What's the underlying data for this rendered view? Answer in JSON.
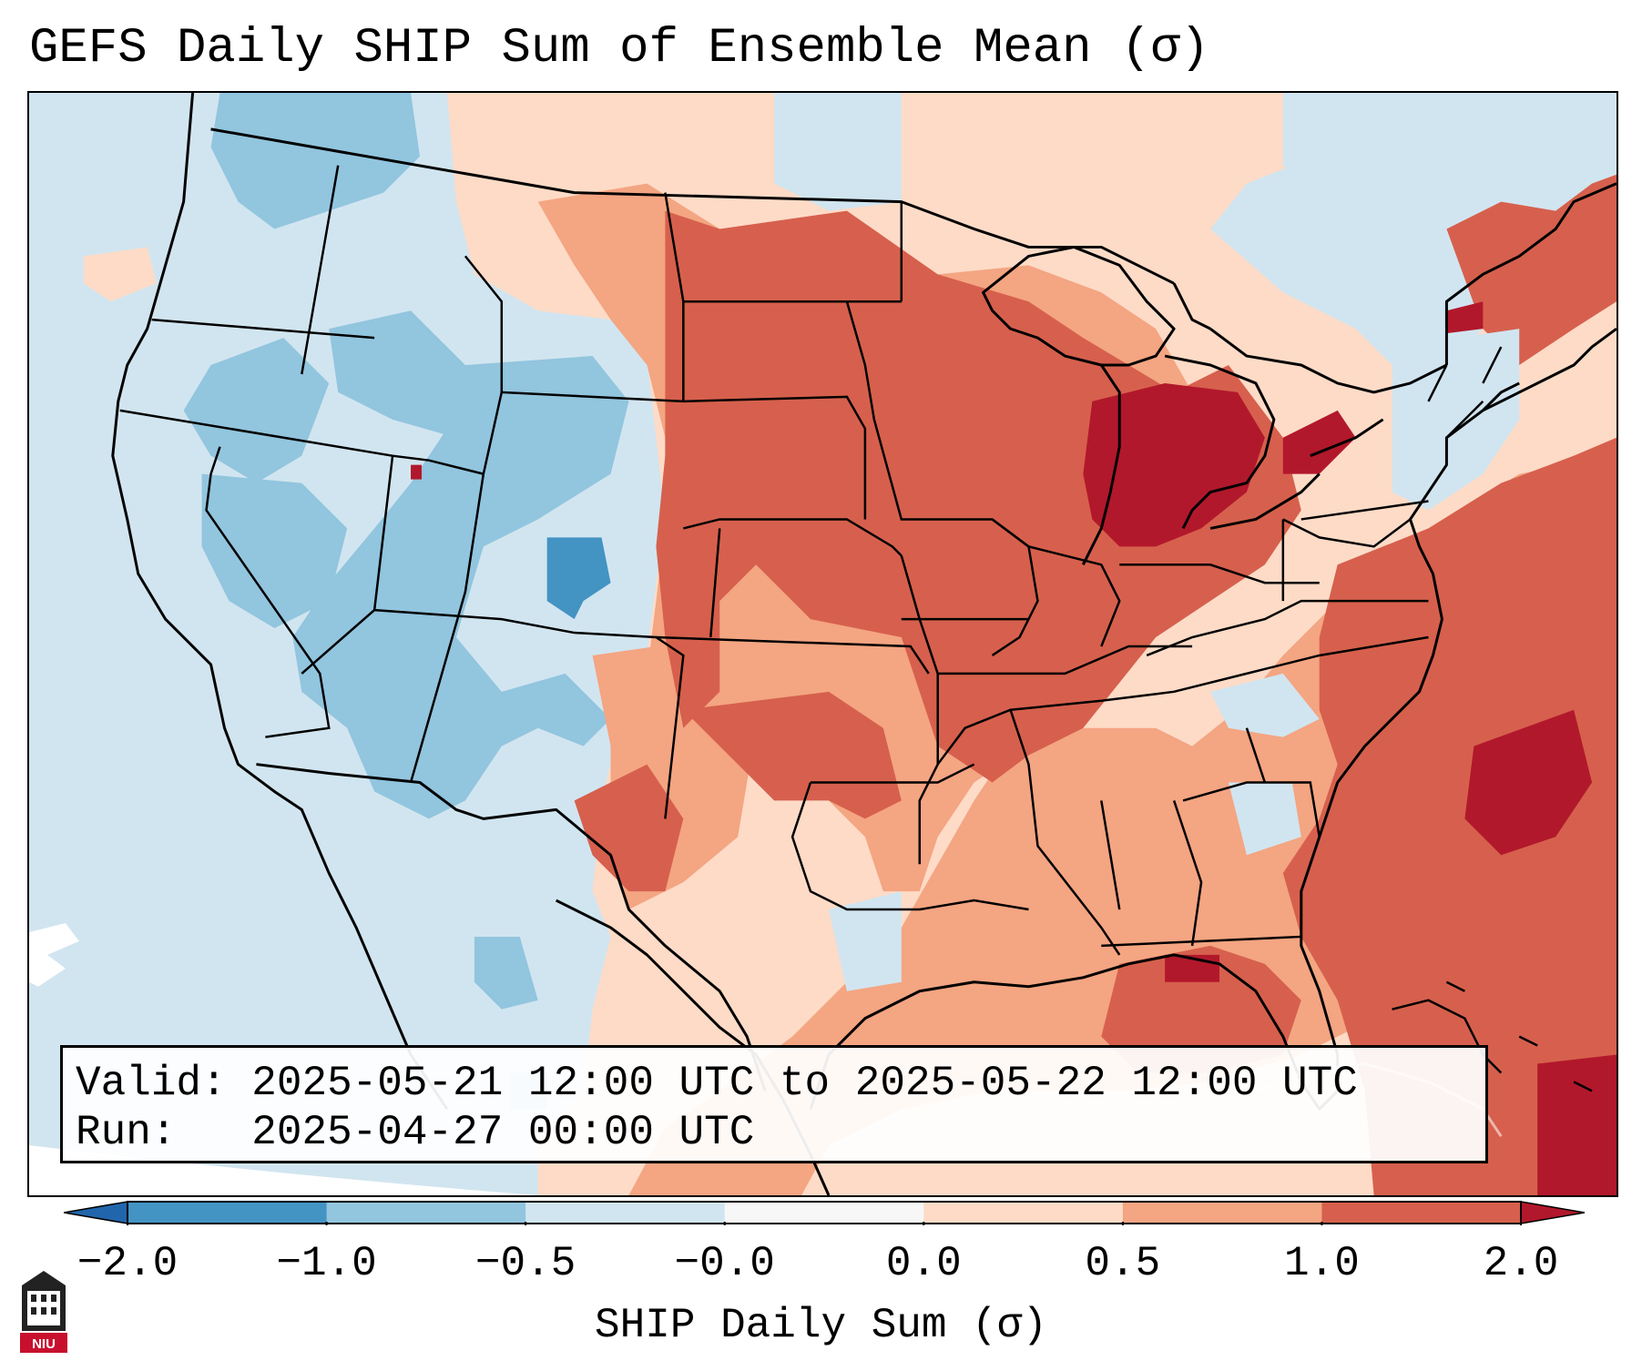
{
  "title": "GEFS Daily SHIP Sum of Ensemble Mean (σ)",
  "info": {
    "valid_label": "Valid:",
    "valid_value": "2025-05-21 12:00 UTC to 2025-05-22 12:00 UTC",
    "run_label": "Run:",
    "run_value": "2025-04-27 00:00 UTC"
  },
  "colorbar": {
    "label": "SHIP Daily Sum (σ)",
    "ticks": [
      "−2.0",
      "−1.0",
      "−0.5",
      "−0.0",
      "0.0",
      "0.5",
      "1.0",
      "2.0"
    ],
    "bins": [
      {
        "from": -2.0,
        "to": -1.0,
        "color": "#4393c3"
      },
      {
        "from": -1.0,
        "to": -0.5,
        "color": "#92c5de"
      },
      {
        "from": -0.5,
        "to": 0.0,
        "color": "#d1e5f0"
      },
      {
        "from": 0.0,
        "to": 0.0,
        "color": "#f7f7f7"
      },
      {
        "from": 0.0,
        "to": 0.5,
        "color": "#fddbc7"
      },
      {
        "from": 0.5,
        "to": 1.0,
        "color": "#f4a582"
      },
      {
        "from": 1.0,
        "to": 2.0,
        "color": "#d6604d"
      }
    ],
    "under_color": "#2166ac",
    "over_color": "#b2182b"
  },
  "logo": {
    "text": "NIU",
    "icon": "niu-tower-icon"
  },
  "map": {
    "projection": "Lambert Conformal, CONUS",
    "background_value_color": "#d1e5f0",
    "boundaries": [
      "coastlines",
      "country-borders",
      "us-state-lines"
    ]
  }
}
